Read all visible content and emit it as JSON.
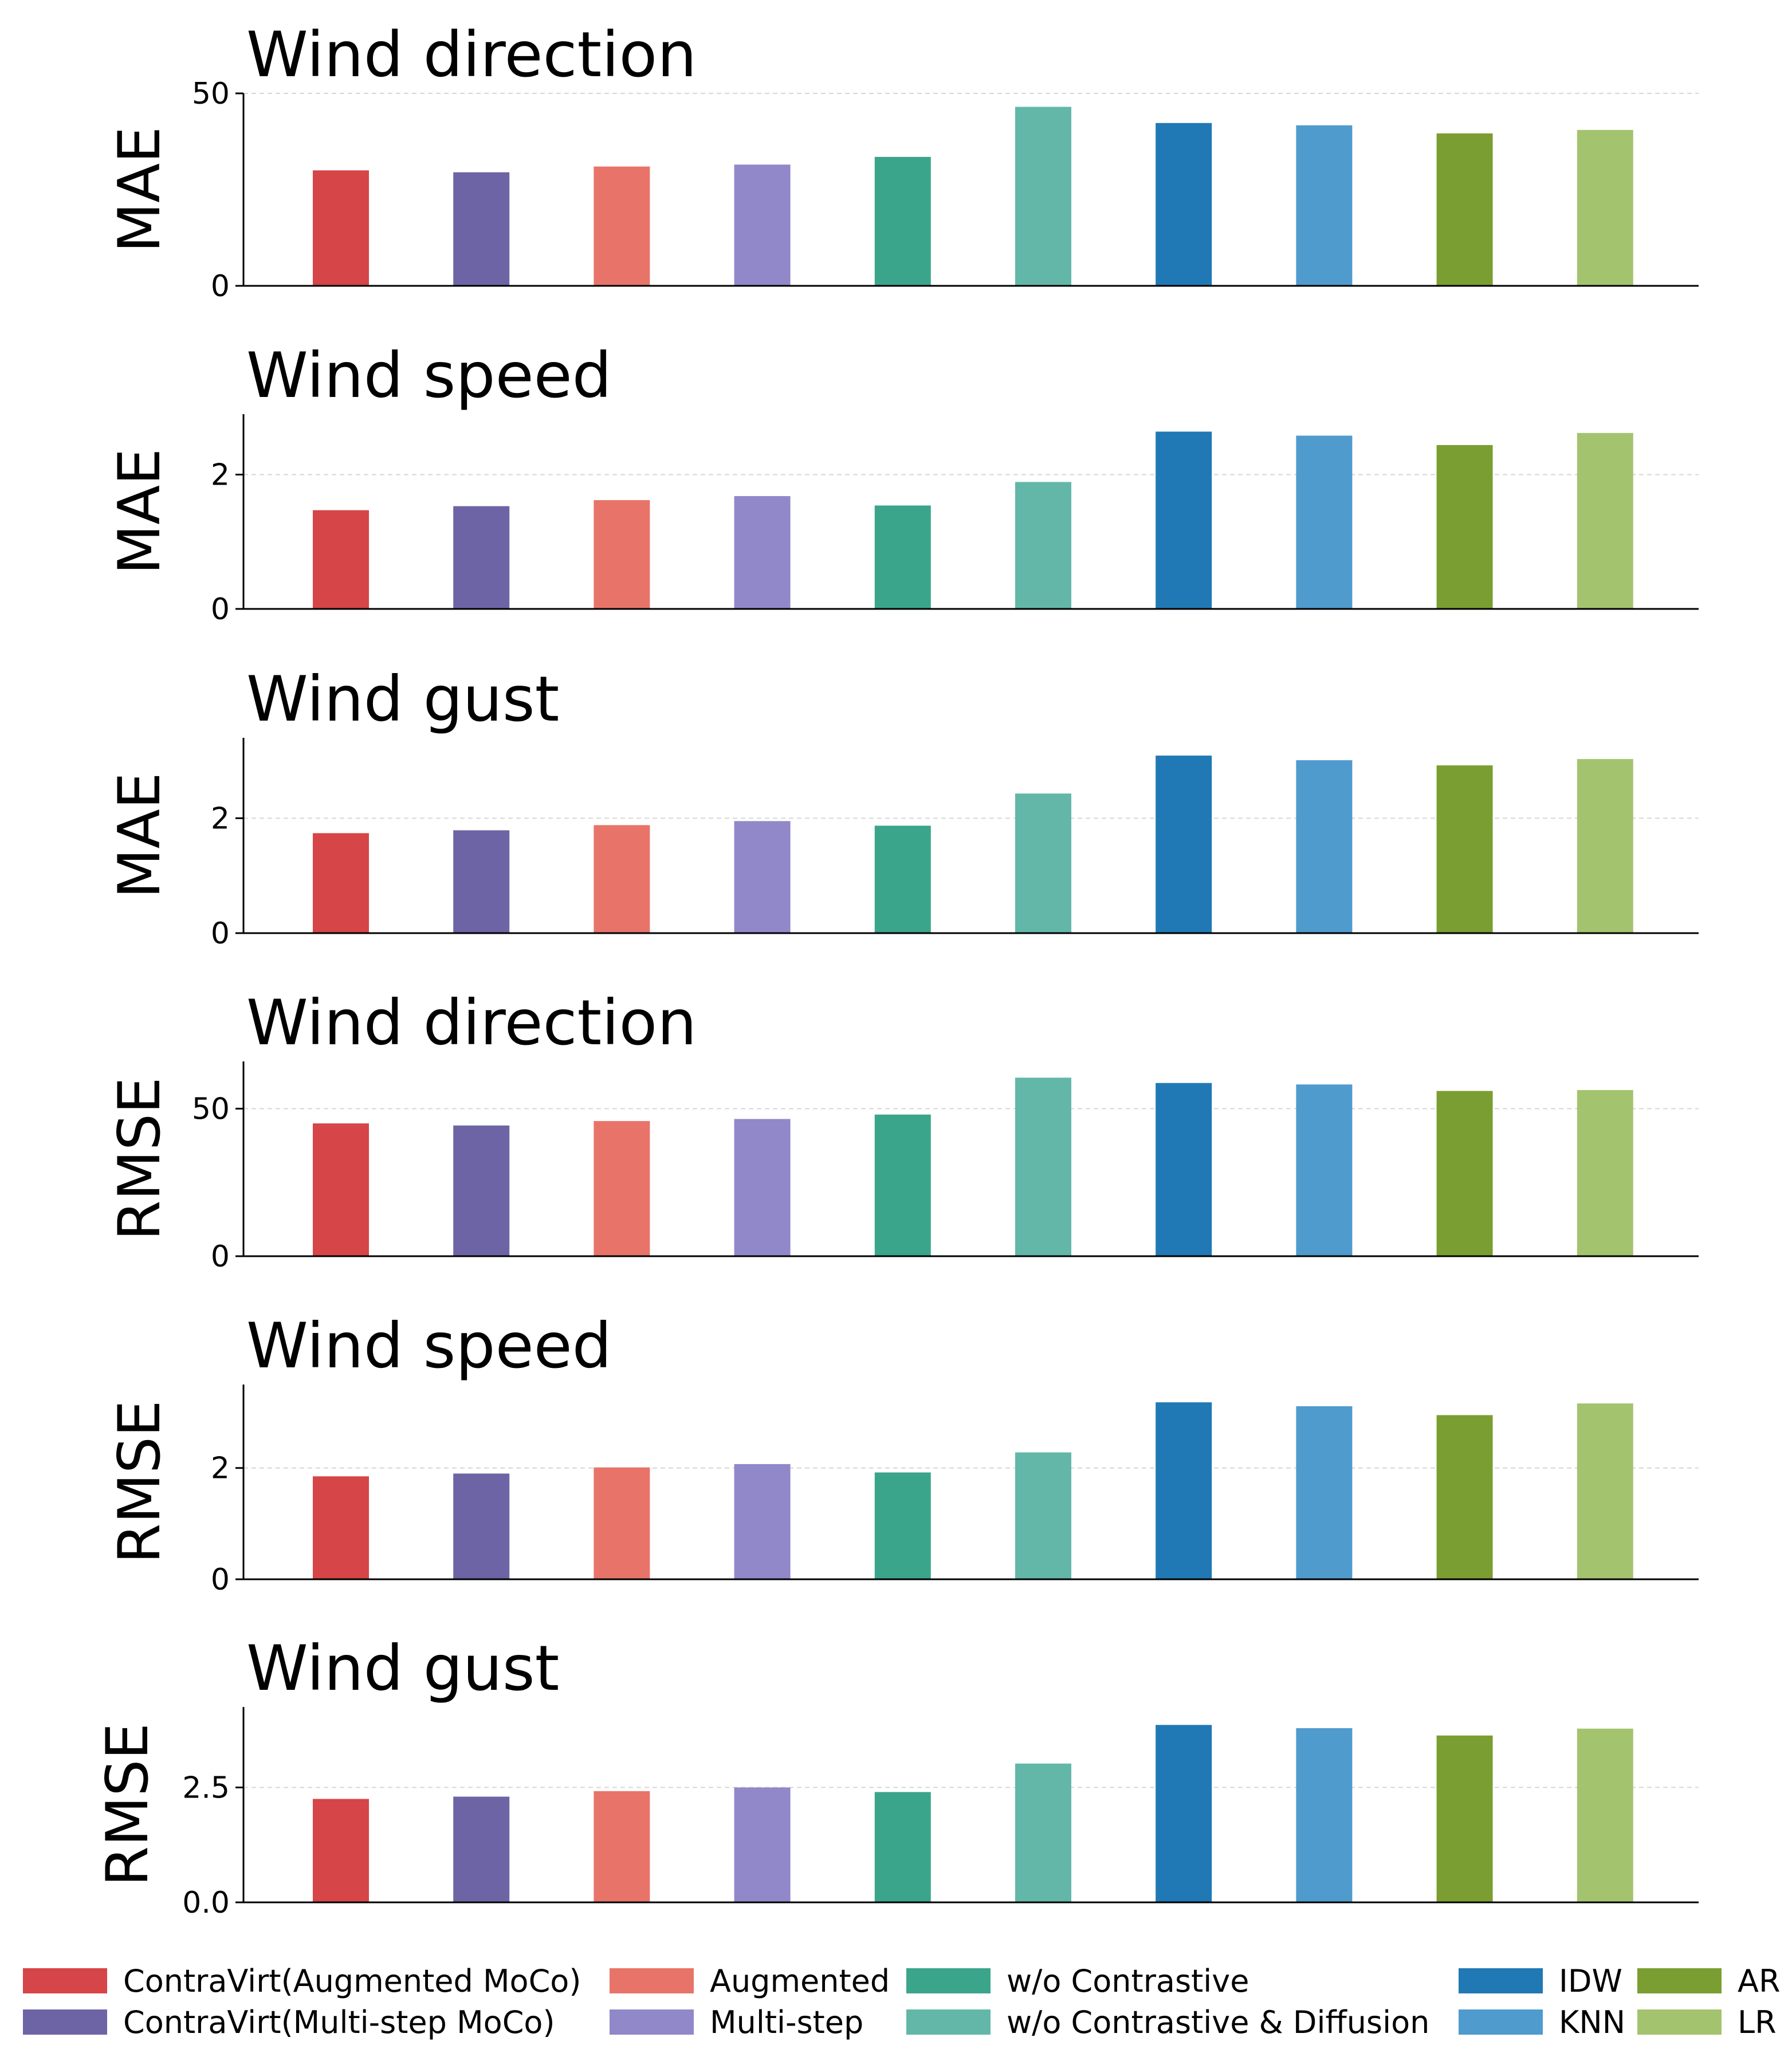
{
  "chart_data": [
    {
      "type": "bar",
      "title": "Wind direction",
      "ylabel": "MAE",
      "ylim": [
        0,
        50
      ],
      "yticks": [
        0,
        50
      ],
      "ytick_labels": [
        "0",
        "50"
      ],
      "grid": true,
      "categories": [
        "ContraVirt(Augmented MoCo)",
        "ContraVirt(Multi-step MoCo)",
        "Augmented",
        "Multi-step",
        "w/o Contrastive",
        "w/o Contrastive & Diffusion",
        "IDW",
        "KNN",
        "AR",
        "LR"
      ],
      "values": [
        30,
        29.5,
        31,
        31.5,
        33.5,
        46.5,
        42.3,
        41.7,
        39.6,
        40.5
      ]
    },
    {
      "type": "bar",
      "title": "Wind speed",
      "ylabel": "MAE",
      "ylim": [
        0,
        2.9
      ],
      "yticks": [
        0,
        2
      ],
      "ytick_labels": [
        "0",
        "2"
      ],
      "grid": true,
      "categories": [
        "ContraVirt(Augmented MoCo)",
        "ContraVirt(Multi-step MoCo)",
        "Augmented",
        "Multi-step",
        "w/o Contrastive",
        "w/o Contrastive & Diffusion",
        "IDW",
        "KNN",
        "AR",
        "LR"
      ],
      "values": [
        1.47,
        1.53,
        1.62,
        1.68,
        1.54,
        1.89,
        2.64,
        2.58,
        2.44,
        2.62
      ]
    },
    {
      "type": "bar",
      "title": "Wind gust",
      "ylabel": "MAE",
      "ylim": [
        0,
        3.4
      ],
      "yticks": [
        0,
        2
      ],
      "ytick_labels": [
        "0",
        "2"
      ],
      "grid": true,
      "categories": [
        "ContraVirt(Augmented MoCo)",
        "ContraVirt(Multi-step MoCo)",
        "Augmented",
        "Multi-step",
        "w/o Contrastive",
        "w/o Contrastive & Diffusion",
        "IDW",
        "KNN",
        "AR",
        "LR"
      ],
      "values": [
        1.74,
        1.79,
        1.88,
        1.95,
        1.87,
        2.43,
        3.09,
        3.01,
        2.92,
        3.03
      ]
    },
    {
      "type": "bar",
      "title": "Wind direction",
      "ylabel": "RMSE",
      "ylim": [
        0,
        66
      ],
      "yticks": [
        0,
        50
      ],
      "ytick_labels": [
        "0",
        "50"
      ],
      "grid": true,
      "categories": [
        "ContraVirt(Augmented MoCo)",
        "ContraVirt(Multi-step MoCo)",
        "Augmented",
        "Multi-step",
        "w/o Contrastive",
        "w/o Contrastive & Diffusion",
        "IDW",
        "KNN",
        "AR",
        "LR"
      ],
      "values": [
        45,
        44.3,
        45.8,
        46.5,
        48,
        60.5,
        58.7,
        58.2,
        56,
        56.3
      ]
    },
    {
      "type": "bar",
      "title": "Wind speed",
      "ylabel": "RMSE",
      "ylim": [
        0,
        3.5
      ],
      "yticks": [
        0,
        2
      ],
      "ytick_labels": [
        "0",
        "2"
      ],
      "grid": true,
      "categories": [
        "ContraVirt(Augmented MoCo)",
        "ContraVirt(Multi-step MoCo)",
        "Augmented",
        "Multi-step",
        "w/o Contrastive",
        "w/o Contrastive & Diffusion",
        "IDW",
        "KNN",
        "AR",
        "LR"
      ],
      "values": [
        1.85,
        1.9,
        2.01,
        2.07,
        1.92,
        2.28,
        3.18,
        3.11,
        2.95,
        3.16
      ]
    },
    {
      "type": "bar",
      "title": "Wind gust",
      "ylabel": "RMSE",
      "ylim": [
        0,
        4.25
      ],
      "yticks": [
        0,
        2.5
      ],
      "ytick_labels": [
        "0.0",
        "2.5"
      ],
      "grid": true,
      "categories": [
        "ContraVirt(Augmented MoCo)",
        "ContraVirt(Multi-step MoCo)",
        "Augmented",
        "Multi-step",
        "w/o Contrastive",
        "w/o Contrastive & Diffusion",
        "IDW",
        "KNN",
        "AR",
        "LR"
      ],
      "values": [
        2.25,
        2.3,
        2.42,
        2.5,
        2.4,
        3.02,
        3.86,
        3.79,
        3.63,
        3.78
      ]
    }
  ],
  "legend": {
    "placement": "bottom",
    "items": [
      {
        "label": "ContraVirt(Augmented MoCo)",
        "color": "#d64547"
      },
      {
        "label": "ContraVirt(Multi-step MoCo)",
        "color": "#6d64a6"
      },
      {
        "label": "Augmented",
        "color": "#e87469"
      },
      {
        "label": "Multi-step",
        "color": "#9088c9"
      },
      {
        "label": "w/o Contrastive",
        "color": "#3ba58c"
      },
      {
        "label": "w/o Contrastive & Diffusion",
        "color": "#62b7a8"
      },
      {
        "label": "IDW",
        "color": "#2079b4"
      },
      {
        "label": "KNN",
        "color": "#4f9bce"
      },
      {
        "label": "AR",
        "color": "#7a9e31"
      },
      {
        "label": "LR",
        "color": "#a4c36f"
      }
    ]
  }
}
